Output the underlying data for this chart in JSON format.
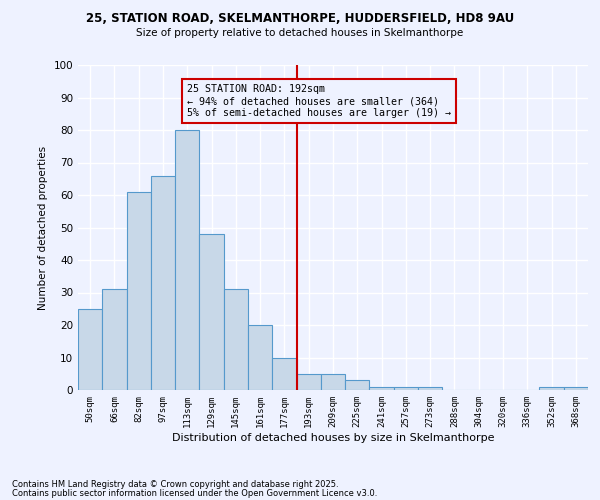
{
  "title1": "25, STATION ROAD, SKELMANTHORPE, HUDDERSFIELD, HD8 9AU",
  "title2": "Size of property relative to detached houses in Skelmanthorpe",
  "xlabel": "Distribution of detached houses by size in Skelmanthorpe",
  "ylabel": "Number of detached properties",
  "categories": [
    "50sqm",
    "66sqm",
    "82sqm",
    "97sqm",
    "113sqm",
    "129sqm",
    "145sqm",
    "161sqm",
    "177sqm",
    "193sqm",
    "209sqm",
    "225sqm",
    "241sqm",
    "257sqm",
    "273sqm",
    "288sqm",
    "304sqm",
    "320sqm",
    "336sqm",
    "352sqm",
    "368sqm"
  ],
  "values": [
    25,
    31,
    61,
    66,
    80,
    48,
    31,
    20,
    10,
    5,
    5,
    3,
    1,
    1,
    1,
    0,
    0,
    0,
    0,
    1,
    1
  ],
  "bar_color": "#c8d8e8",
  "bar_edge_color": "#5599cc",
  "vline_color": "#cc0000",
  "annotation_text": "25 STATION ROAD: 192sqm\n← 94% of detached houses are smaller (364)\n5% of semi-detached houses are larger (19) →",
  "annotation_box_color": "#cc0000",
  "ylim": [
    0,
    100
  ],
  "yticks": [
    0,
    10,
    20,
    30,
    40,
    50,
    60,
    70,
    80,
    90,
    100
  ],
  "background_color": "#eef2ff",
  "grid_color": "#ffffff",
  "footnote1": "Contains HM Land Registry data © Crown copyright and database right 2025.",
  "footnote2": "Contains public sector information licensed under the Open Government Licence v3.0."
}
